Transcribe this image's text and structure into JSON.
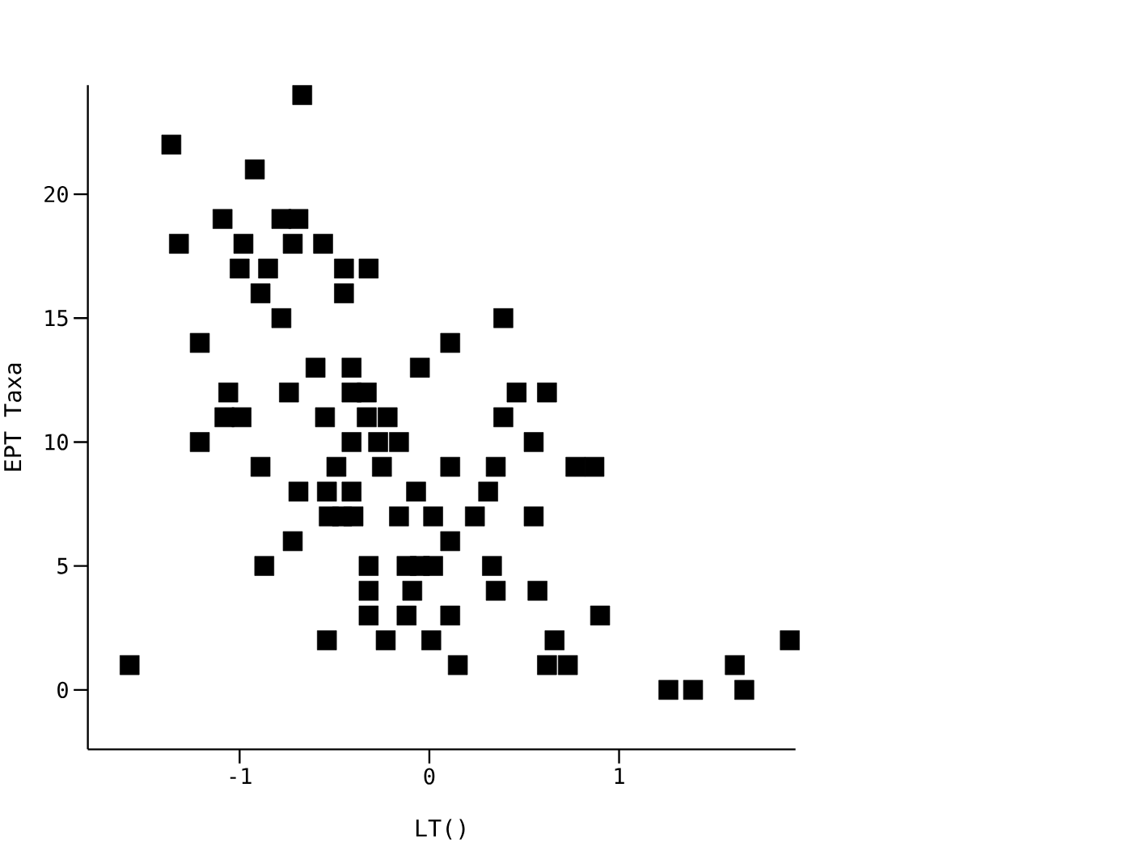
{
  "chart_data": {
    "type": "scatter",
    "xlabel": "LT()",
    "ylabel": "EPT Taxa",
    "marker": "square",
    "color": "#000000",
    "x": [
      -0.67,
      -1.36,
      -0.92,
      -1.09,
      -0.78,
      -0.69,
      -1.32,
      -0.98,
      -0.72,
      -0.56,
      -1.0,
      -0.85,
      -0.45,
      -0.32,
      -0.89,
      -0.45,
      -0.78,
      0.39,
      -1.21,
      0.11,
      -0.6,
      -0.41,
      -0.05,
      -1.06,
      -0.74,
      -0.41,
      -0.33,
      0.46,
      0.62,
      -1.08,
      -0.99,
      -0.55,
      -0.33,
      -0.22,
      0.39,
      -1.21,
      -0.41,
      -0.27,
      -0.16,
      0.55,
      -0.89,
      -0.49,
      -0.25,
      0.11,
      0.35,
      0.77,
      0.87,
      -0.69,
      -0.54,
      -0.41,
      -0.07,
      0.31,
      -0.53,
      -0.46,
      -0.4,
      -0.16,
      0.02,
      0.24,
      0.55,
      -0.72,
      0.11,
      -0.87,
      -0.32,
      -0.12,
      -0.05,
      0.02,
      0.33,
      -0.32,
      -0.09,
      0.35,
      0.57,
      -0.32,
      -0.12,
      0.11,
      0.9,
      -0.54,
      -0.23,
      0.01,
      0.66,
      1.9,
      -1.58,
      0.15,
      0.62,
      0.73,
      1.61,
      1.26,
      1.39,
      1.66
    ],
    "values": [
      24,
      22,
      21,
      19,
      19,
      19,
      18,
      18,
      18,
      18,
      17,
      17,
      17,
      17,
      16,
      16,
      15,
      15,
      14,
      14,
      13,
      13,
      13,
      12,
      12,
      12,
      12,
      12,
      12,
      11,
      11,
      11,
      11,
      11,
      11,
      10,
      10,
      10,
      10,
      10,
      9,
      9,
      9,
      9,
      9,
      9,
      9,
      8,
      8,
      8,
      8,
      8,
      7,
      7,
      7,
      7,
      7,
      7,
      7,
      6,
      6,
      5,
      5,
      5,
      5,
      5,
      5,
      4,
      4,
      4,
      4,
      3,
      3,
      3,
      3,
      2,
      2,
      2,
      2,
      2,
      1,
      1,
      1,
      1,
      1,
      0,
      0,
      0
    ],
    "xlim": [
      -1.8,
      1.93
    ],
    "ylim": [
      -2.4,
      24.4
    ],
    "xticks": [
      -1,
      0,
      1
    ],
    "yticks": [
      0,
      5,
      10,
      15,
      20
    ]
  }
}
